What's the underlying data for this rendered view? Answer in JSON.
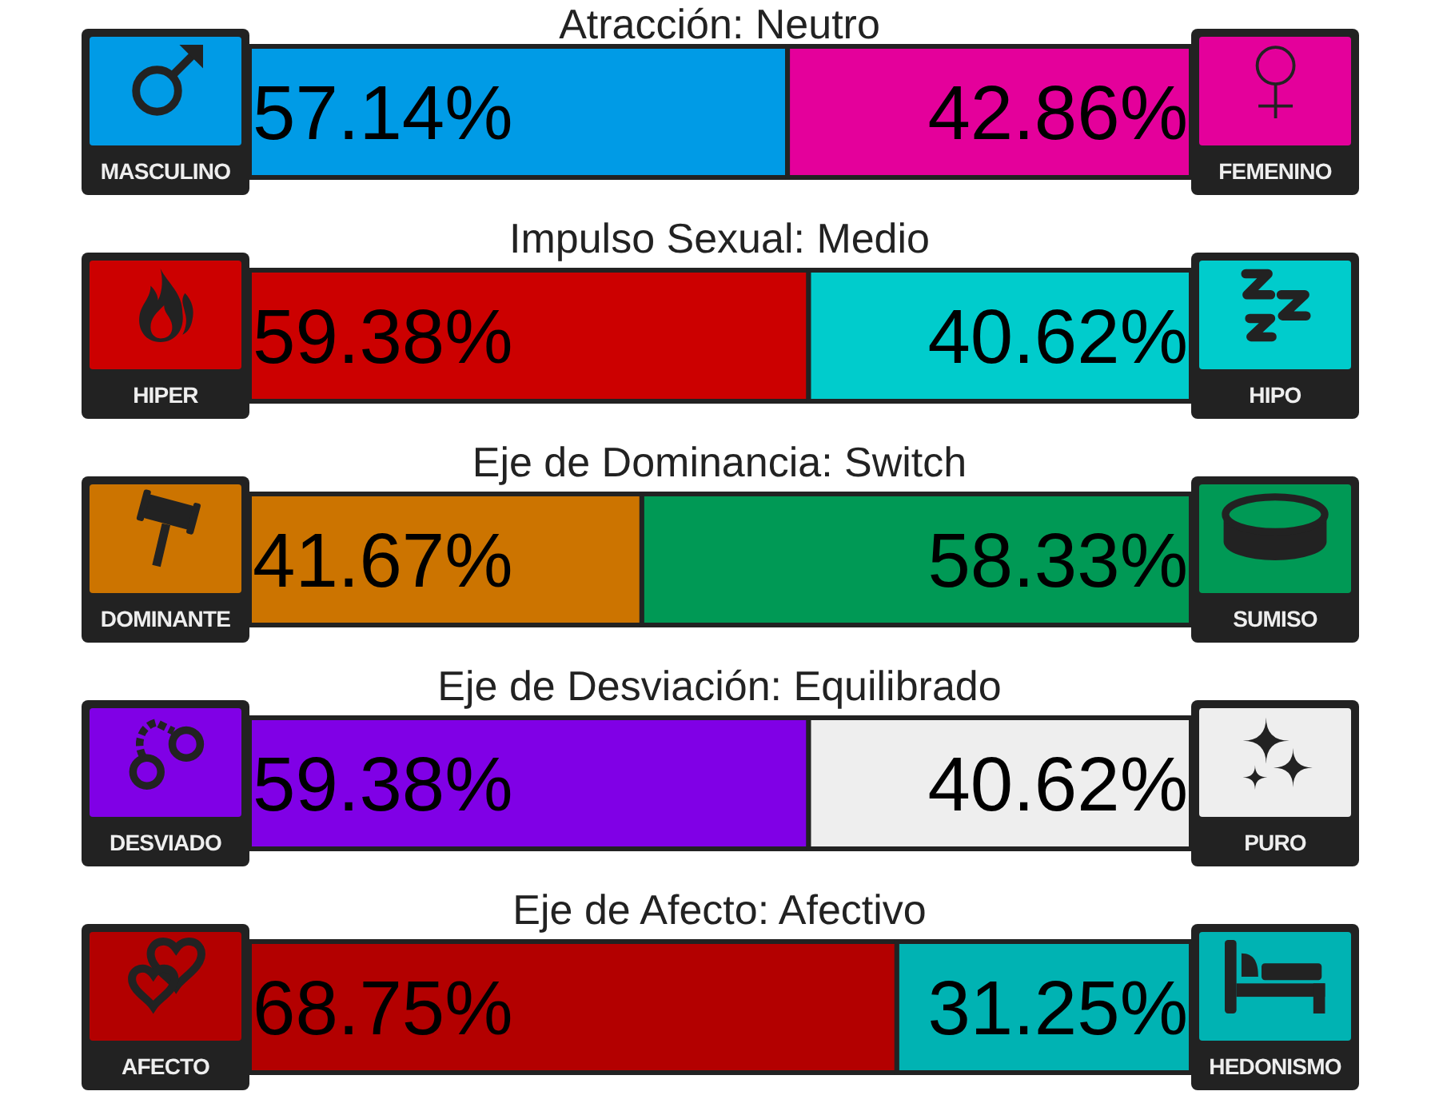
{
  "chart_data": [
    {
      "type": "bar",
      "orientation": "horizontal",
      "stacked": true,
      "title": "Atracción: Neutro",
      "categories": [
        null
      ],
      "series": [
        {
          "name": "MASCULINO",
          "color": "#009be6",
          "values": [
            57.14
          ],
          "value_labels": [
            "57.14%"
          ]
        },
        {
          "name": "FEMENINO",
          "color": "#e4009b",
          "values": [
            42.86
          ],
          "value_labels": [
            "42.86%"
          ]
        }
      ],
      "xlim": [
        0,
        100
      ],
      "tick_labels": false
    },
    {
      "type": "bar",
      "orientation": "horizontal",
      "stacked": true,
      "title": "Impulso Sexual: Medio",
      "categories": [
        null
      ],
      "series": [
        {
          "name": "HIPER",
          "color": "#cc0000",
          "values": [
            59.38
          ],
          "value_labels": [
            "59.38%"
          ]
        },
        {
          "name": "HIPO",
          "color": "#00cccc",
          "values": [
            40.62
          ],
          "value_labels": [
            "40.62%"
          ]
        }
      ],
      "xlim": [
        0,
        100
      ],
      "tick_labels": false
    },
    {
      "type": "bar",
      "orientation": "horizontal",
      "stacked": true,
      "title": "Eje de Dominancia: Switch",
      "categories": [
        null
      ],
      "series": [
        {
          "name": "DOMINANTE",
          "color": "#cc7400",
          "values": [
            41.67
          ],
          "value_labels": [
            "41.67%"
          ]
        },
        {
          "name": "SUMISO",
          "color": "#009955",
          "values": [
            58.33
          ],
          "value_labels": [
            "58.33%"
          ]
        }
      ],
      "xlim": [
        0,
        100
      ],
      "tick_labels": false
    },
    {
      "type": "bar",
      "orientation": "horizontal",
      "stacked": true,
      "title": "Eje de Desviación: Equilibrado",
      "categories": [
        null
      ],
      "series": [
        {
          "name": "DESVIADO",
          "color": "#8000e6",
          "values": [
            59.38
          ],
          "value_labels": [
            "59.38%"
          ]
        },
        {
          "name": "PURO",
          "color": "#eeeeee",
          "values": [
            40.62
          ],
          "value_labels": [
            "40.62%"
          ]
        }
      ],
      "xlim": [
        0,
        100
      ],
      "tick_labels": false
    },
    {
      "type": "bar",
      "orientation": "horizontal",
      "stacked": true,
      "title": "Eje de Afecto: Afectivo",
      "categories": [
        null
      ],
      "series": [
        {
          "name": "AFECTO",
          "color": "#b30000",
          "values": [
            68.75
          ],
          "value_labels": [
            "68.75%"
          ]
        },
        {
          "name": "HEDONISMO",
          "color": "#00b3b3",
          "values": [
            31.25
          ],
          "value_labels": [
            "31.25%"
          ]
        }
      ],
      "xlim": [
        0,
        100
      ],
      "tick_labels": false
    }
  ]
}
